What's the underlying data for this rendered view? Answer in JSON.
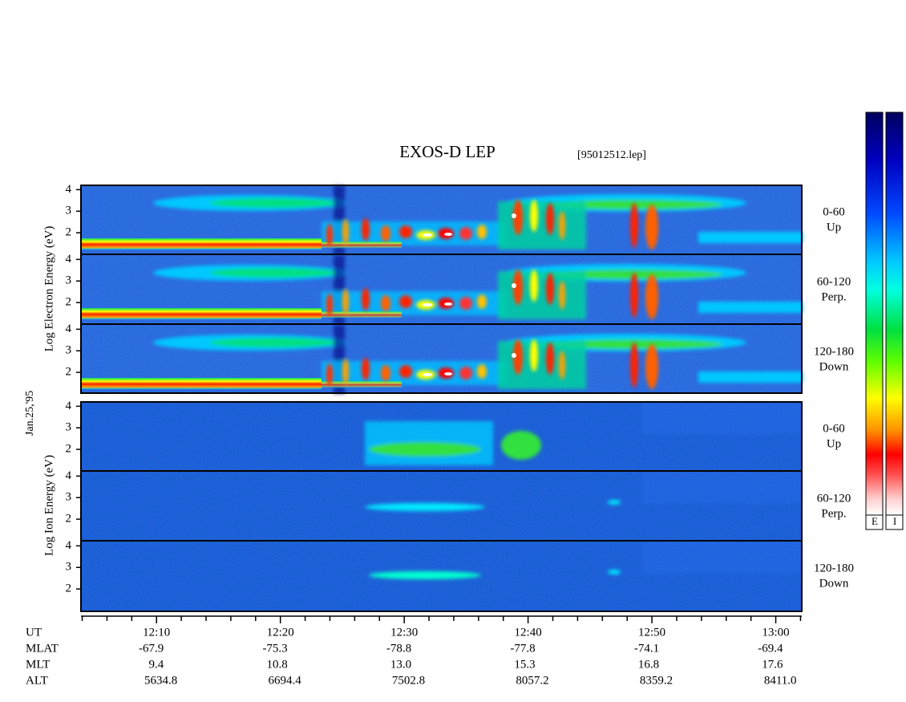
{
  "chart_data": {
    "type": "spectrogram",
    "title": "EXOS-D LEP",
    "subtitle": "[95012512.lep]",
    "date_label": "Jan.25,'95",
    "group_labels": [
      "Log Electron Energy (eV)",
      "Log Ion Energy (eV)"
    ],
    "ylim": [
      1,
      4.2
    ],
    "yticks": [
      2,
      3,
      4
    ],
    "panels": [
      {
        "label": "0-60",
        "sublabel": "Up"
      },
      {
        "label": "60-120",
        "sublabel": "Perp."
      },
      {
        "label": "120-180",
        "sublabel": "Down"
      },
      {
        "label": "0-60",
        "sublabel": "Up"
      },
      {
        "label": "60-120",
        "sublabel": "Perp."
      },
      {
        "label": "120-180",
        "sublabel": "Down"
      }
    ],
    "xlim": [
      723.9,
      782.1
    ],
    "xticks": [
      {
        "value": 730,
        "label": "12:10"
      },
      {
        "value": 740,
        "label": "12:20"
      },
      {
        "value": 750,
        "label": "12:30"
      },
      {
        "value": 760,
        "label": "12:40"
      },
      {
        "value": 770,
        "label": "12:50"
      },
      {
        "value": 780,
        "label": "13:00"
      }
    ],
    "minor_xticks": [
      724,
      726,
      728,
      732,
      734,
      736,
      738,
      742,
      744,
      746,
      748,
      752,
      754,
      756,
      758,
      762,
      764,
      766,
      768,
      772,
      774,
      776,
      778,
      782
    ],
    "ephemeris": [
      {
        "label": "UT"
      },
      {
        "label": "MLAT",
        "values": [
          "-67.9",
          "-75.3",
          "-78.8",
          "-77.8",
          "-74.1",
          "-69.4"
        ]
      },
      {
        "label": "MLT",
        "values": [
          "9.4",
          "10.8",
          "13.0",
          "15.3",
          "16.8",
          "17.6"
        ]
      },
      {
        "label": "ALT",
        "values": [
          "5634.8",
          "6694.4",
          "7502.8",
          "8057.2",
          "8359.2",
          "8411.0"
        ]
      }
    ],
    "colorbar_labels": [
      "E",
      "I"
    ]
  }
}
